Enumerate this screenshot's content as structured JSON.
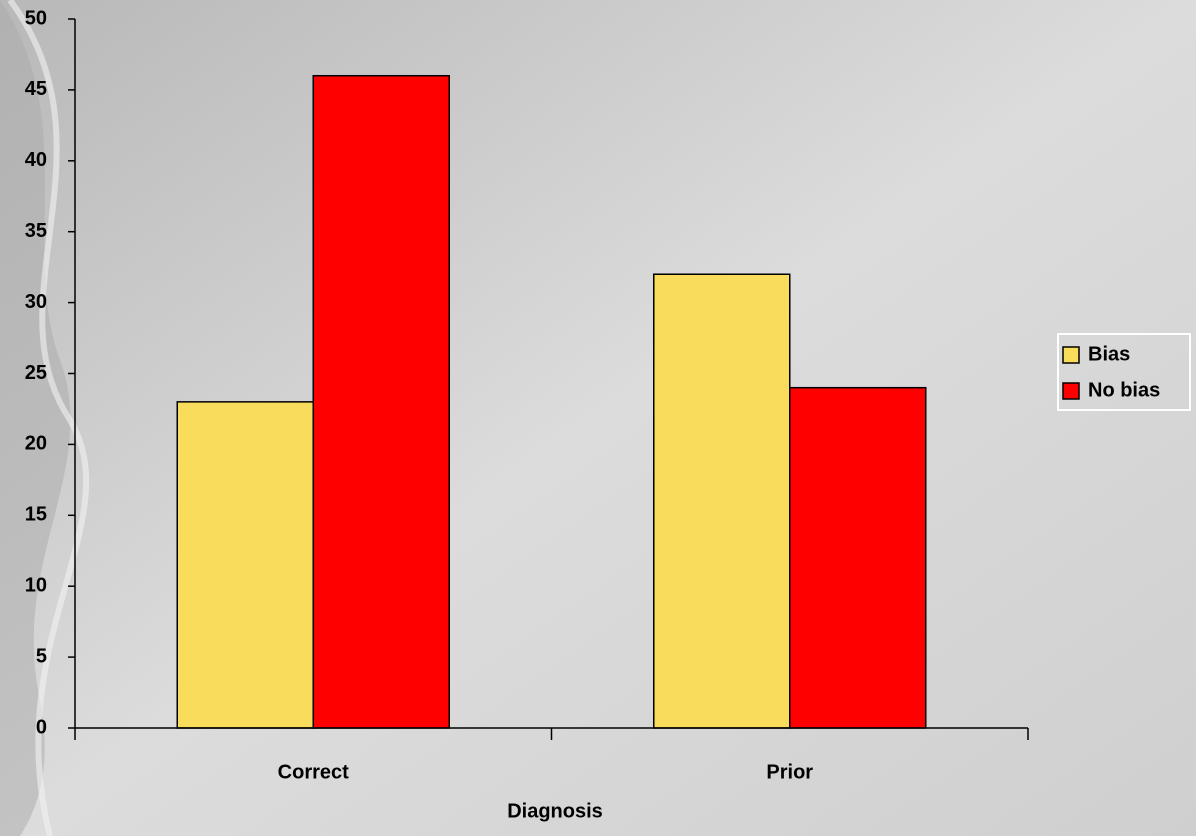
{
  "chart_data": {
    "type": "bar",
    "x_label": "Diagnosis",
    "categories": [
      "Correct",
      "Prior"
    ],
    "series": [
      {
        "name": "Bias",
        "color": "#f9dc5c",
        "values": [
          23,
          32
        ]
      },
      {
        "name": "No bias",
        "color": "#ff0000",
        "values": [
          46,
          24
        ]
      }
    ],
    "ylim": [
      0,
      50
    ],
    "yticks": [
      0,
      5,
      10,
      15,
      20,
      25,
      30,
      35,
      40,
      45,
      50
    ],
    "grid": false,
    "legend": "right"
  }
}
